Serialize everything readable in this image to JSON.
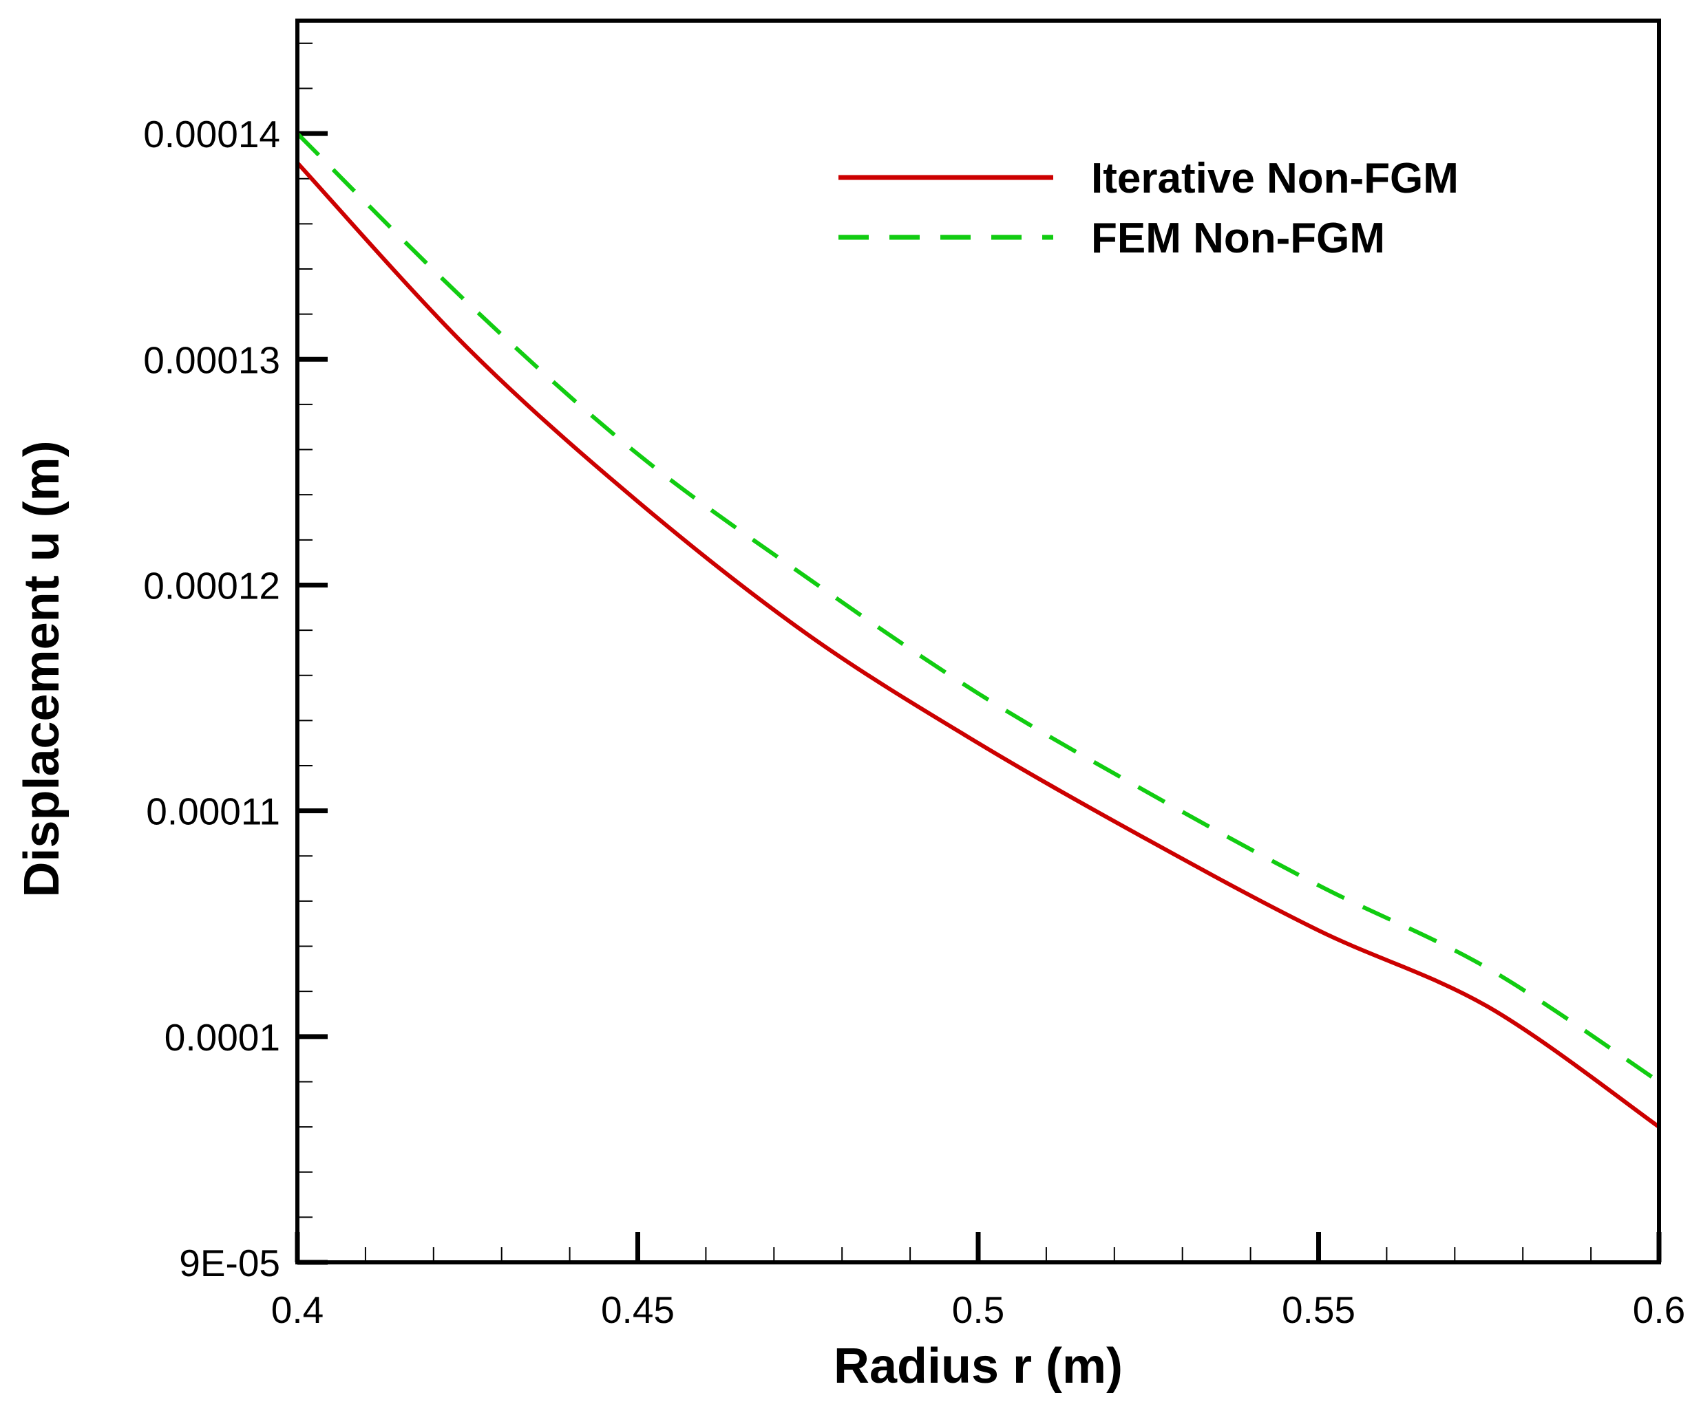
{
  "chart_data": {
    "type": "line",
    "title": "",
    "xlabel": "Radius r (m)",
    "ylabel": "Displacement u (m)",
    "xlim": [
      0.4,
      0.6
    ],
    "ylim": [
      9e-05,
      0.000145
    ],
    "grid": false,
    "legend_position": "top-right",
    "x_ticks": [
      {
        "value": 0.4,
        "label": "0.4"
      },
      {
        "value": 0.45,
        "label": "0.45"
      },
      {
        "value": 0.5,
        "label": "0.5"
      },
      {
        "value": 0.55,
        "label": "0.55"
      },
      {
        "value": 0.6,
        "label": "0.6"
      }
    ],
    "y_ticks": [
      {
        "value": 9e-05,
        "label": "9E-05"
      },
      {
        "value": 0.0001,
        "label": "0.0001"
      },
      {
        "value": 0.00011,
        "label": "0.00011"
      },
      {
        "value": 0.00012,
        "label": "0.00012"
      },
      {
        "value": 0.00013,
        "label": "0.00013"
      },
      {
        "value": 0.00014,
        "label": "0.00014"
      }
    ],
    "series": [
      {
        "name": "Iterative Non-FGM",
        "color": "#cc0000",
        "style": "solid",
        "x": [
          0.4,
          0.425,
          0.45,
          0.475,
          0.5,
          0.525,
          0.55,
          0.575,
          0.6
        ],
        "y": [
          0.0001387,
          0.0001305,
          0.0001237,
          0.0001178,
          0.000113,
          0.0001087,
          0.0001047,
          0.0001013,
          9.6e-05
        ]
      },
      {
        "name": "FEM Non-FGM",
        "color": "#11cc11",
        "style": "dashed",
        "x": [
          0.4,
          0.425,
          0.45,
          0.475,
          0.5,
          0.525,
          0.55,
          0.575,
          0.6
        ],
        "y": [
          0.00014,
          0.0001325,
          0.0001258,
          0.0001203,
          0.0001152,
          0.0001108,
          0.0001067,
          0.000103,
          9.8e-05
        ]
      }
    ]
  }
}
